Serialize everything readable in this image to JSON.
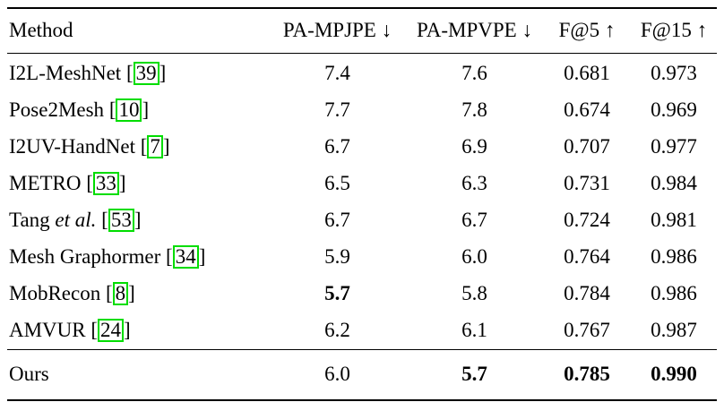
{
  "colors": {
    "citation_box": "#00DD00",
    "text": "#000000",
    "background": "#FFFFFF"
  },
  "punctuation": {
    "open_bracket": "[",
    "close_bracket": "]"
  },
  "table": {
    "headers": [
      "Method",
      "PA-MPJPE ↓",
      "PA-MPVPE ↓",
      "F@5 ↑",
      "F@15 ↑"
    ],
    "rows": [
      {
        "method": "I2L-MeshNet ",
        "cite": "39",
        "values": [
          "7.4",
          "7.6",
          "0.681",
          "0.973"
        ]
      },
      {
        "method": "Pose2Mesh ",
        "cite": "10",
        "values": [
          "7.7",
          "7.8",
          "0.674",
          "0.969"
        ]
      },
      {
        "method": "I2UV-HandNet ",
        "cite": "7",
        "values": [
          "6.7",
          "6.9",
          "0.707",
          "0.977"
        ]
      },
      {
        "method": "METRO ",
        "cite": "33",
        "values": [
          "6.5",
          "6.3",
          "0.731",
          "0.984"
        ]
      },
      {
        "method": "Tang ",
        "method_italic": "et al. ",
        "cite": "53",
        "values": [
          "6.7",
          "6.7",
          "0.724",
          "0.981"
        ]
      },
      {
        "method": "Mesh Graphormer ",
        "cite": "34",
        "values": [
          "5.9",
          "6.0",
          "0.764",
          "0.986"
        ]
      },
      {
        "method": "MobRecon ",
        "cite": "8",
        "values": [
          "5.7",
          "5.8",
          "0.784",
          "0.986"
        ]
      },
      {
        "method": "AMVUR ",
        "cite": "24",
        "values": [
          "6.2",
          "6.1",
          "0.767",
          "0.987"
        ]
      },
      {
        "method": "Ours",
        "values": [
          "6.0",
          "5.7",
          "0.785",
          "0.990"
        ]
      }
    ]
  }
}
